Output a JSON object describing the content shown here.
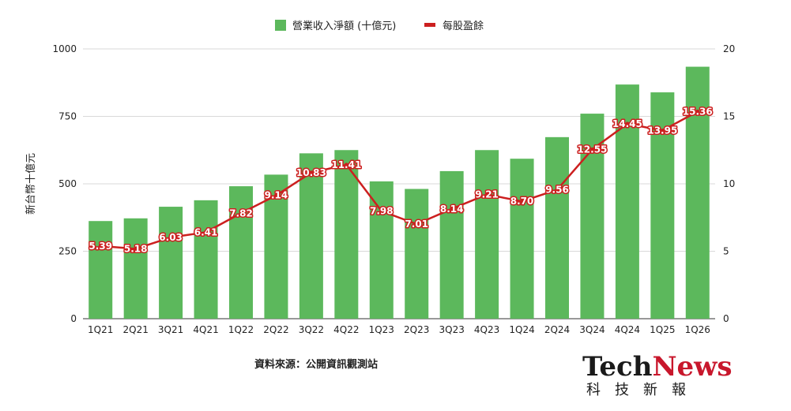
{
  "chart_data": {
    "type": "bar",
    "categories": [
      "1Q21",
      "2Q21",
      "3Q21",
      "4Q21",
      "1Q22",
      "2Q22",
      "3Q22",
      "4Q22",
      "1Q23",
      "2Q23",
      "3Q23",
      "4Q23",
      "1Q24",
      "2Q24",
      "3Q24",
      "4Q24",
      "1Q25",
      "1Q26"
    ],
    "series": [
      {
        "name": "營業收入淨額 (十億元)",
        "type": "bar",
        "axis": "left",
        "color": "#5cb85c",
        "values": [
          362,
          372,
          415,
          439,
          491,
          534,
          613,
          625,
          509,
          481,
          547,
          625,
          593,
          673,
          760,
          868,
          839,
          934
        ]
      },
      {
        "name": "每股盈餘",
        "type": "line",
        "axis": "right",
        "color": "#cc1f1f",
        "values": [
          5.39,
          5.18,
          6.03,
          6.41,
          7.82,
          9.14,
          10.83,
          11.41,
          7.98,
          7.01,
          8.14,
          9.21,
          8.7,
          9.56,
          12.55,
          14.45,
          13.95,
          15.36
        ],
        "labels": [
          "5.39",
          "5.18",
          "6.03",
          "6.41",
          "7.82",
          "9.14",
          "10.83",
          "11.41",
          "7.98",
          "7.01",
          "8.14",
          "9.21",
          "8.70",
          "9.56",
          "12.55",
          "14.45",
          "13.95",
          "15.36"
        ]
      }
    ],
    "ylabel": "新台幣十億元",
    "ylim": [
      0,
      1000
    ],
    "yticks": [
      "0",
      "250",
      "500",
      "750",
      "1000"
    ],
    "y2lim": [
      0,
      20
    ],
    "y2ticks": [
      "0",
      "5",
      "10",
      "15",
      "20"
    ],
    "grid": true,
    "legend": "top-center"
  },
  "source": "資料來源：公開資訊觀測站",
  "logo": {
    "tech": "Tech",
    "news": "News",
    "subtitle": "科技新報",
    "tech_color": "#1a1a1a",
    "news_color": "#c8172c"
  }
}
